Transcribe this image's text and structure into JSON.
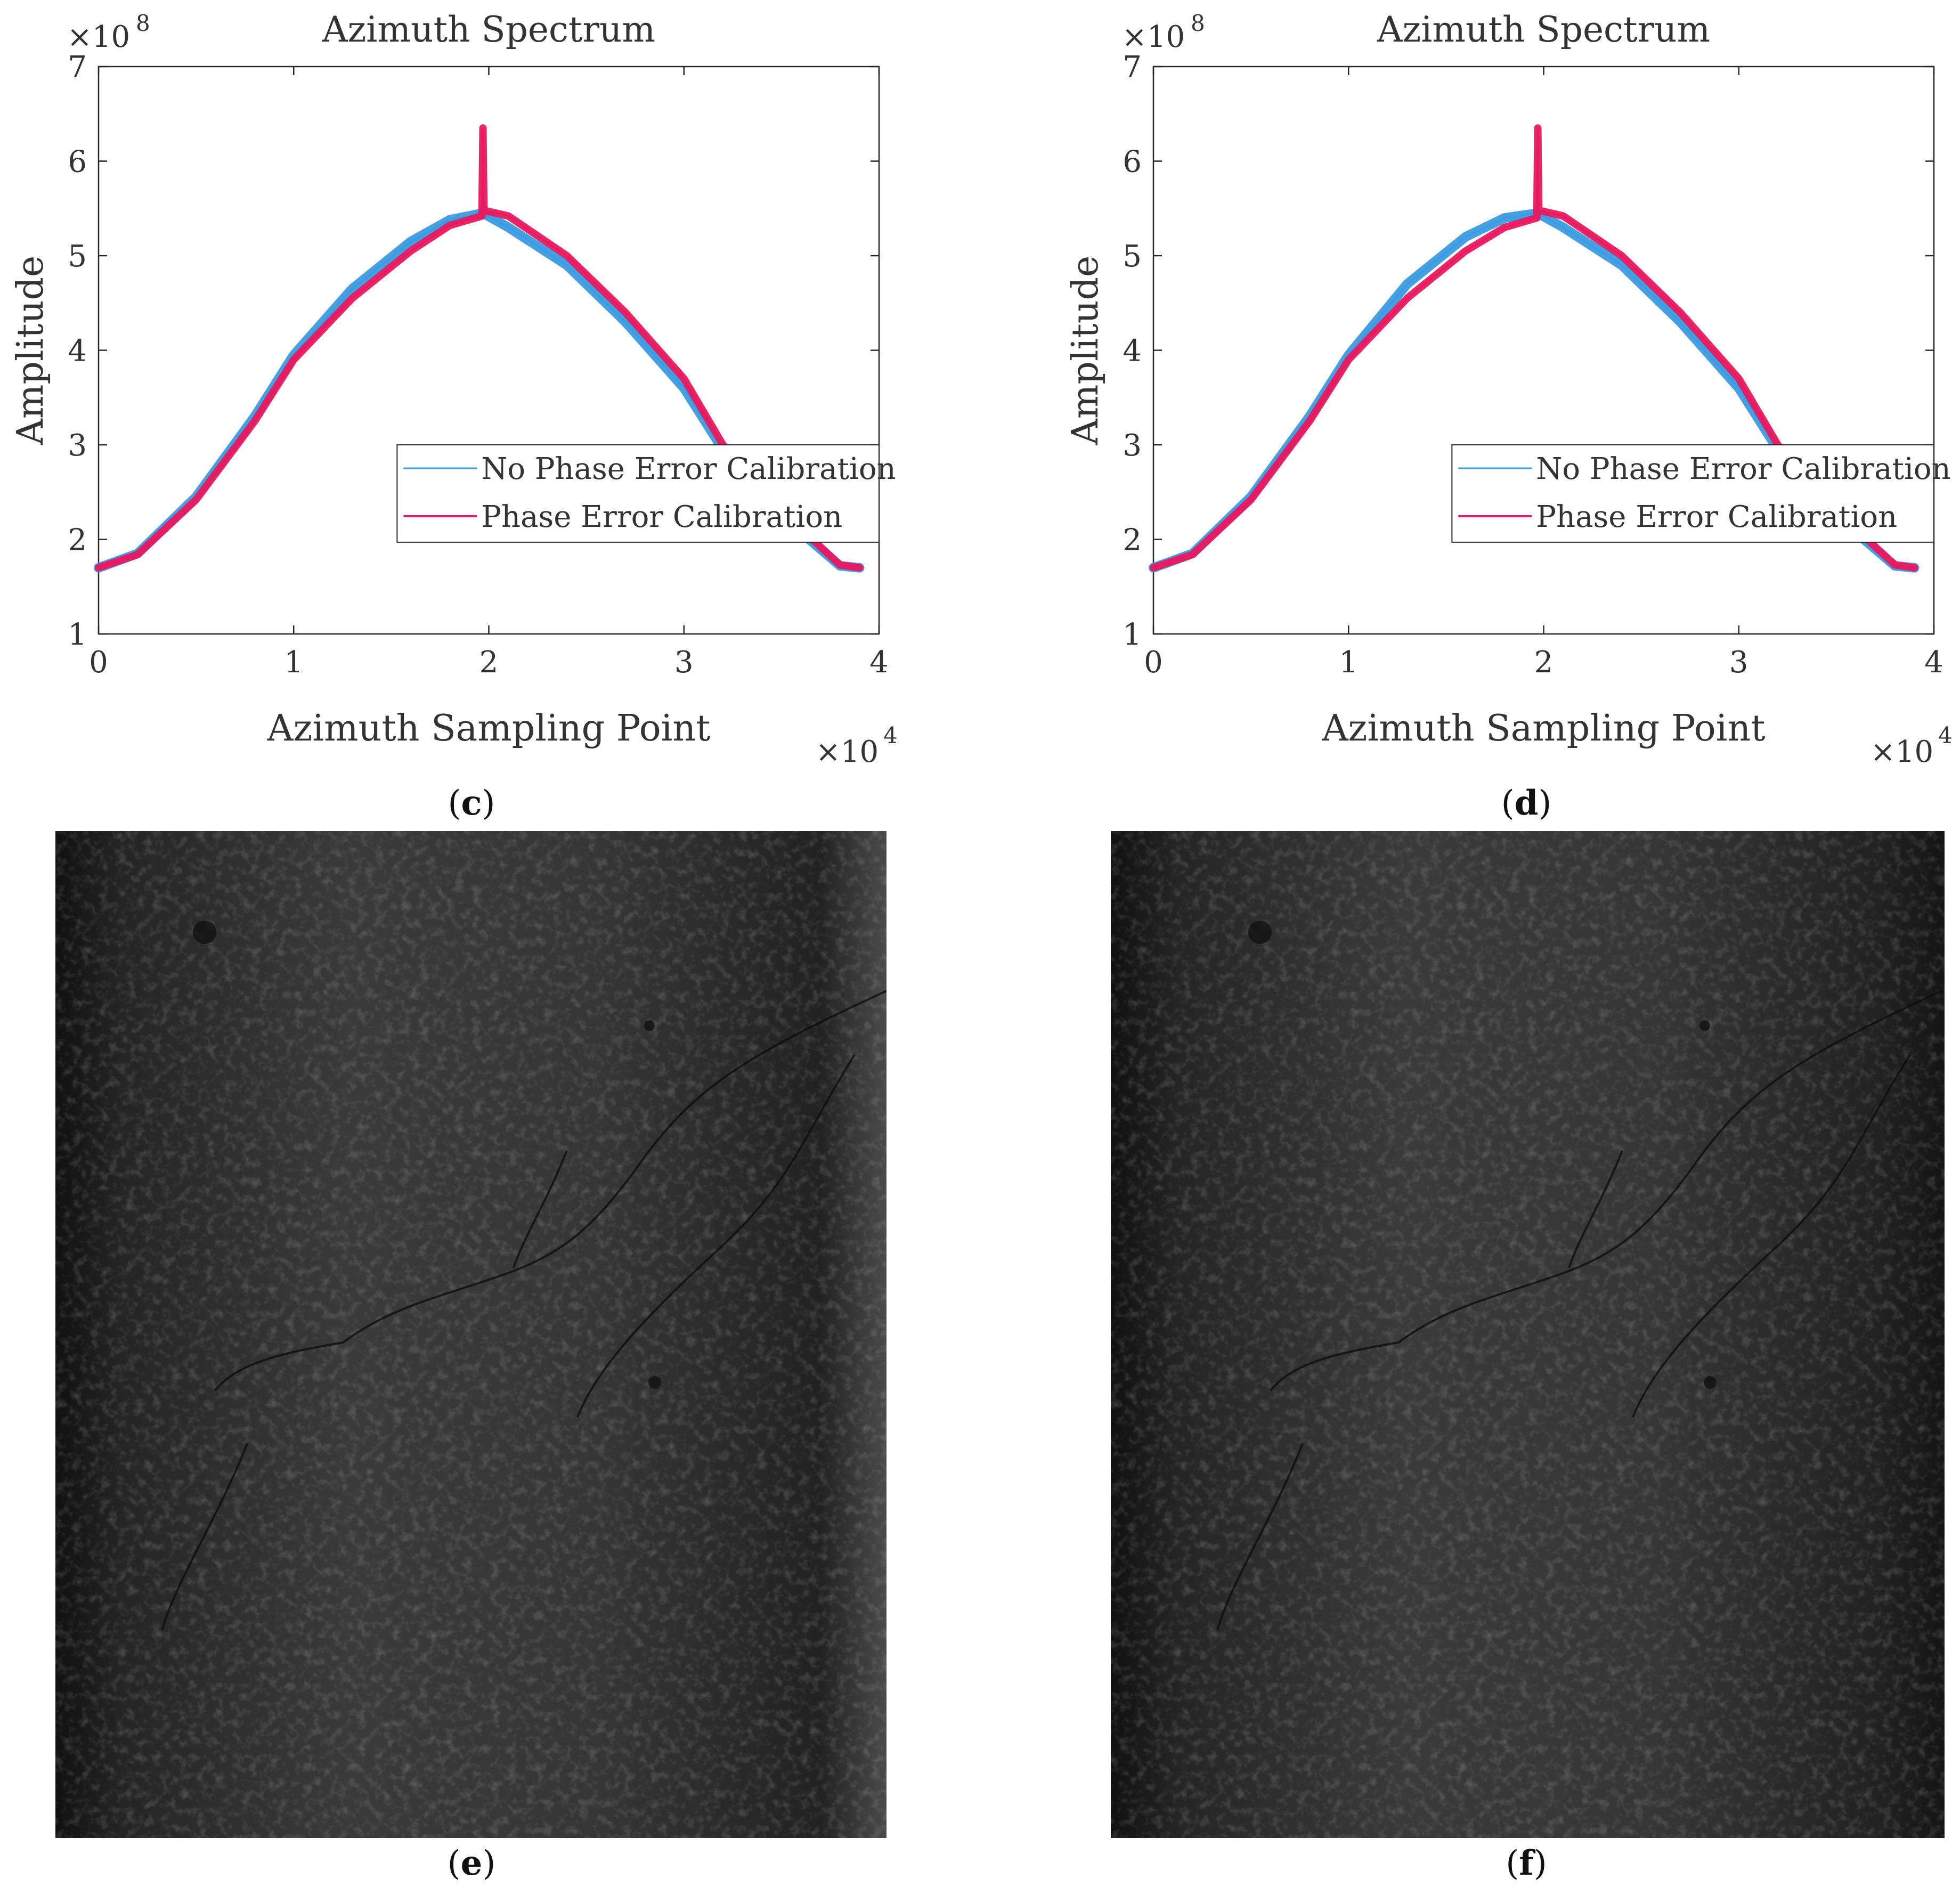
{
  "chart_data": [
    {
      "type": "line",
      "panel": "c",
      "title": "Azimuth Spectrum",
      "xlabel": "Azimuth Sampling Point",
      "ylabel": "Amplitude",
      "x_exponent_label": "×10",
      "x_exponent": "4",
      "y_exponent_label": "×10",
      "y_exponent": "8",
      "xlim": [
        0,
        4
      ],
      "ylim": [
        1,
        7
      ],
      "xticks": [
        "0",
        "1",
        "2",
        "3",
        "4"
      ],
      "yticks": [
        "1",
        "2",
        "3",
        "4",
        "5",
        "6",
        "7"
      ],
      "grid": false,
      "legend_position": "lower-right",
      "series": [
        {
          "name": "No Phase Error Calibration",
          "color": "#3a9be0",
          "x": [
            0,
            0.2,
            0.5,
            0.8,
            1.0,
            1.3,
            1.6,
            1.8,
            1.97,
            2.1,
            2.4,
            2.7,
            3.0,
            3.2,
            3.5,
            3.8,
            3.9
          ],
          "y": [
            1.7,
            1.85,
            2.45,
            3.3,
            3.95,
            4.65,
            5.15,
            5.38,
            5.45,
            5.3,
            4.9,
            4.3,
            3.6,
            2.95,
            2.25,
            1.72,
            1.7
          ]
        },
        {
          "name": "Phase Error Calibration",
          "color": "#e8195f",
          "x": [
            0,
            0.2,
            0.5,
            0.8,
            1.0,
            1.3,
            1.6,
            1.8,
            1.965,
            1.97,
            1.975,
            2.1,
            2.4,
            2.7,
            3.0,
            3.2,
            3.5,
            3.8,
            3.9
          ],
          "y": [
            1.7,
            1.84,
            2.42,
            3.25,
            3.9,
            4.55,
            5.05,
            5.32,
            5.42,
            6.35,
            5.48,
            5.42,
            5.0,
            4.4,
            3.7,
            3.0,
            2.3,
            1.73,
            1.7
          ]
        }
      ]
    },
    {
      "type": "line",
      "panel": "d",
      "title": "Azimuth Spectrum",
      "xlabel": "Azimuth Sampling Point",
      "ylabel": "Amplitude",
      "x_exponent_label": "×10",
      "x_exponent": "4",
      "y_exponent_label": "×10",
      "y_exponent": "8",
      "xlim": [
        0,
        4
      ],
      "ylim": [
        1,
        7
      ],
      "xticks": [
        "0",
        "1",
        "2",
        "3",
        "4"
      ],
      "yticks": [
        "1",
        "2",
        "3",
        "4",
        "5",
        "6",
        "7"
      ],
      "grid": false,
      "legend_position": "lower-right",
      "series": [
        {
          "name": "No Phase Error Calibration",
          "color": "#3a9be0",
          "x": [
            0,
            0.2,
            0.5,
            0.8,
            1.0,
            1.3,
            1.6,
            1.8,
            1.97,
            2.1,
            2.4,
            2.7,
            3.0,
            3.2,
            3.5,
            3.8,
            3.9
          ],
          "y": [
            1.7,
            1.85,
            2.45,
            3.3,
            3.95,
            4.7,
            5.2,
            5.4,
            5.45,
            5.3,
            4.9,
            4.3,
            3.6,
            2.95,
            2.25,
            1.72,
            1.7
          ]
        },
        {
          "name": "Phase Error Calibration",
          "color": "#e8195f",
          "x": [
            0,
            0.2,
            0.5,
            0.8,
            1.0,
            1.3,
            1.6,
            1.8,
            1.965,
            1.97,
            1.975,
            2.1,
            2.4,
            2.7,
            3.0,
            3.2,
            3.5,
            3.8,
            3.9
          ],
          "y": [
            1.7,
            1.84,
            2.42,
            3.25,
            3.9,
            4.55,
            5.05,
            5.3,
            5.4,
            6.35,
            5.48,
            5.42,
            5.0,
            4.4,
            3.7,
            3.0,
            2.3,
            1.73,
            1.7
          ]
        }
      ]
    }
  ],
  "captions": {
    "c": "c",
    "d": "d",
    "e": "e",
    "f": "f"
  },
  "images": {
    "e": {
      "kind": "SAR image"
    },
    "f": {
      "kind": "SAR image"
    }
  }
}
